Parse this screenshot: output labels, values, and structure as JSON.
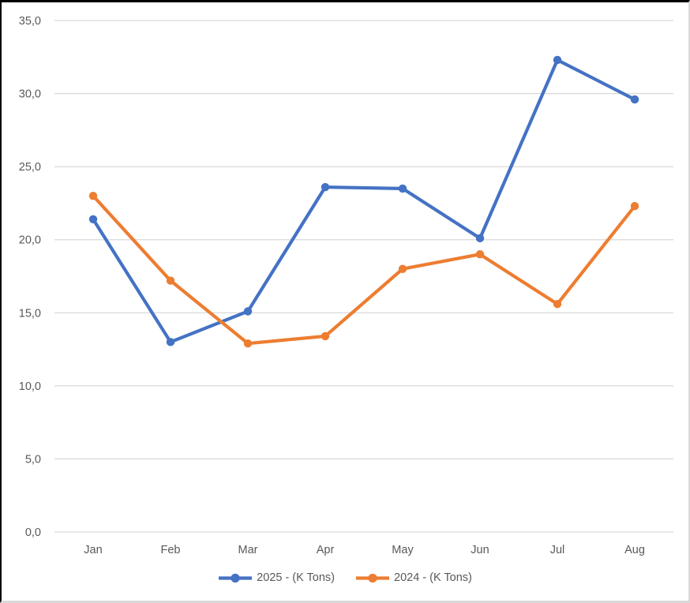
{
  "chart_data": {
    "type": "line",
    "title": "",
    "xlabel": "",
    "ylabel": "",
    "categories": [
      "Jan",
      "Feb",
      "Mar",
      "Apr",
      "May",
      "Jun",
      "Jul",
      "Aug"
    ],
    "series": [
      {
        "id": "2025",
        "name": "2025 - (K Tons)",
        "color": "#4472C4",
        "values": [
          21.4,
          13.0,
          15.1,
          23.6,
          23.5,
          20.1,
          32.3,
          29.6
        ]
      },
      {
        "id": "2024",
        "name": "2024 - (K Tons)",
        "color": "#ED7D31",
        "values": [
          23.0,
          17.2,
          12.9,
          13.4,
          18.0,
          19.0,
          15.6,
          22.3
        ]
      }
    ],
    "ylim": [
      0,
      35
    ],
    "yticks": [
      {
        "value": 0,
        "label": "0,0"
      },
      {
        "value": 5,
        "label": "5,0"
      },
      {
        "value": 10,
        "label": "10,0"
      },
      {
        "value": 15,
        "label": "15,0"
      },
      {
        "value": 20,
        "label": "20,0"
      },
      {
        "value": 25,
        "label": "25,0"
      },
      {
        "value": 30,
        "label": "30,0"
      },
      {
        "value": 35,
        "label": "35,0"
      }
    ],
    "grid": true,
    "legend_position": "bottom",
    "gridline_color": "#d9d9d9",
    "axis_text_color": "#595959"
  }
}
